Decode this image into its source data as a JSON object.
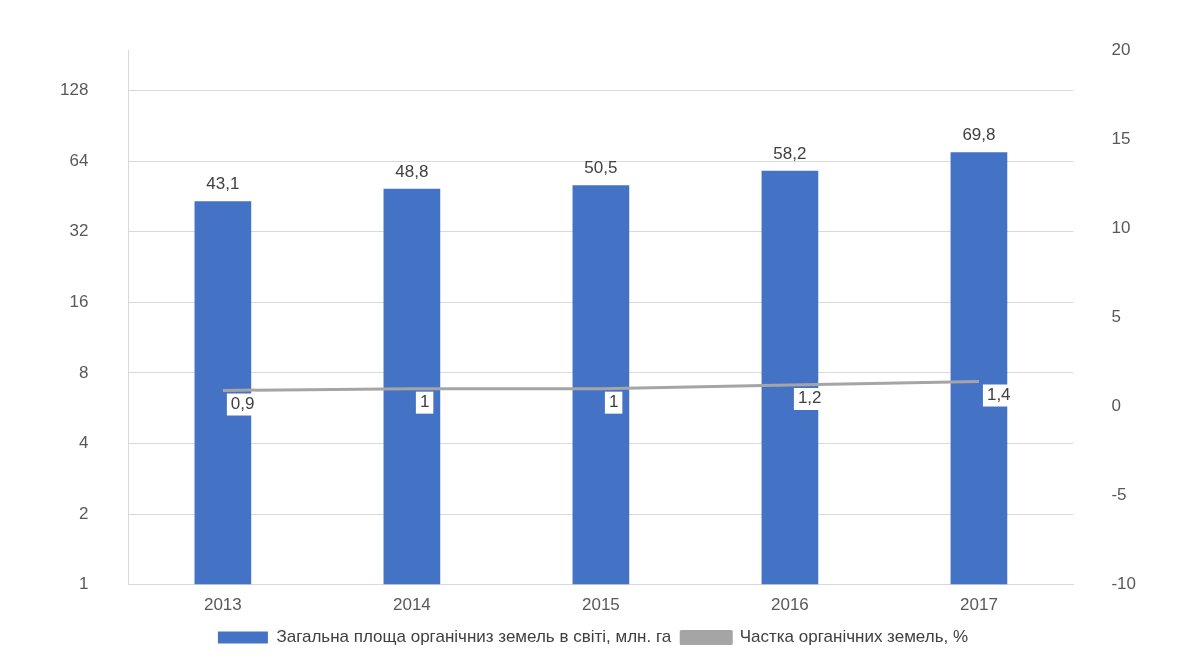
{
  "chart_data": {
    "type": "bar",
    "categories": [
      "2013",
      "2014",
      "2015",
      "2016",
      "2017"
    ],
    "series": [
      {
        "name": "Загальна площа органічниз земель в світі, млн. га",
        "color": "#4472c4",
        "values": [
          43.1,
          48.8,
          50.5,
          58.2,
          69.8
        ],
        "value_labels": [
          "43,1",
          "48,8",
          "50,5",
          "58,2",
          "69,8"
        ]
      },
      {
        "name": "Частка органічних земель, %",
        "type": "line",
        "axis": "y2",
        "color": "#a5a5a5",
        "values": [
          0.9,
          1,
          1,
          1.2,
          1.4
        ],
        "value_labels": [
          "0,9",
          "1",
          "1",
          "1,2",
          "1,4"
        ]
      }
    ],
    "log": "y",
    "ylim": [
      1,
      190
    ],
    "yticks": [
      1,
      2,
      4,
      8,
      16,
      32,
      64,
      128
    ],
    "y2lim": [
      -10,
      20
    ],
    "y2ticks": [
      -10,
      -5,
      0,
      5,
      10,
      15,
      20
    ],
    "grid": "y",
    "legend": "bottom",
    "marker": "none"
  }
}
